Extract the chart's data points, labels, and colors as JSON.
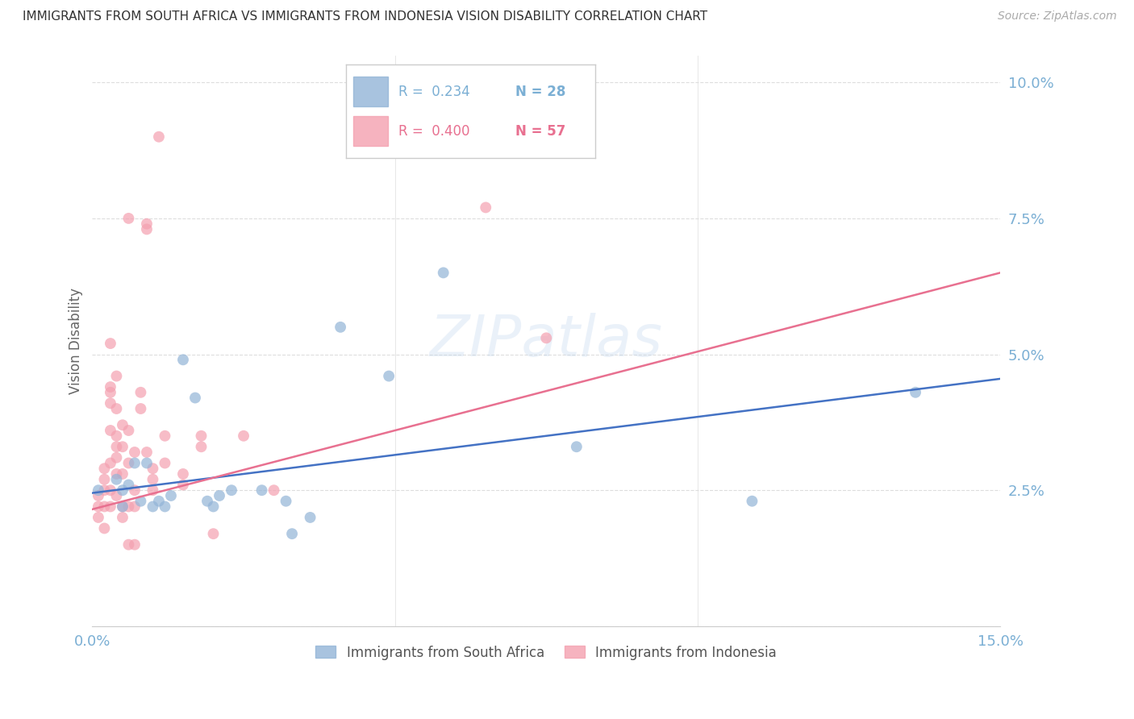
{
  "title": "IMMIGRANTS FROM SOUTH AFRICA VS IMMIGRANTS FROM INDONESIA VISION DISABILITY CORRELATION CHART",
  "source": "Source: ZipAtlas.com",
  "ylabel": "Vision Disability",
  "legend_blue_r": "R =  0.234",
  "legend_blue_n": "N = 28",
  "legend_pink_r": "R =  0.400",
  "legend_pink_n": "N = 57",
  "legend_label_blue": "Immigrants from South Africa",
  "legend_label_pink": "Immigrants from Indonesia",
  "blue_color": "#92B4D7",
  "pink_color": "#F4A0B0",
  "blue_scatter": [
    [
      0.001,
      0.025
    ],
    [
      0.004,
      0.027
    ],
    [
      0.005,
      0.025
    ],
    [
      0.005,
      0.022
    ],
    [
      0.006,
      0.026
    ],
    [
      0.007,
      0.03
    ],
    [
      0.008,
      0.023
    ],
    [
      0.009,
      0.03
    ],
    [
      0.01,
      0.022
    ],
    [
      0.011,
      0.023
    ],
    [
      0.012,
      0.022
    ],
    [
      0.013,
      0.024
    ],
    [
      0.015,
      0.049
    ],
    [
      0.017,
      0.042
    ],
    [
      0.019,
      0.023
    ],
    [
      0.02,
      0.022
    ],
    [
      0.021,
      0.024
    ],
    [
      0.023,
      0.025
    ],
    [
      0.028,
      0.025
    ],
    [
      0.032,
      0.023
    ],
    [
      0.033,
      0.017
    ],
    [
      0.036,
      0.02
    ],
    [
      0.041,
      0.055
    ],
    [
      0.049,
      0.046
    ],
    [
      0.058,
      0.065
    ],
    [
      0.08,
      0.033
    ],
    [
      0.109,
      0.023
    ],
    [
      0.136,
      0.043
    ]
  ],
  "pink_scatter": [
    [
      0.001,
      0.024
    ],
    [
      0.001,
      0.022
    ],
    [
      0.001,
      0.02
    ],
    [
      0.002,
      0.029
    ],
    [
      0.002,
      0.027
    ],
    [
      0.002,
      0.025
    ],
    [
      0.002,
      0.022
    ],
    [
      0.002,
      0.018
    ],
    [
      0.003,
      0.052
    ],
    [
      0.003,
      0.044
    ],
    [
      0.003,
      0.043
    ],
    [
      0.003,
      0.041
    ],
    [
      0.003,
      0.036
    ],
    [
      0.003,
      0.03
    ],
    [
      0.003,
      0.025
    ],
    [
      0.003,
      0.022
    ],
    [
      0.004,
      0.046
    ],
    [
      0.004,
      0.04
    ],
    [
      0.004,
      0.035
    ],
    [
      0.004,
      0.033
    ],
    [
      0.004,
      0.031
    ],
    [
      0.004,
      0.028
    ],
    [
      0.004,
      0.024
    ],
    [
      0.005,
      0.037
    ],
    [
      0.005,
      0.033
    ],
    [
      0.005,
      0.028
    ],
    [
      0.005,
      0.022
    ],
    [
      0.005,
      0.02
    ],
    [
      0.006,
      0.075
    ],
    [
      0.006,
      0.036
    ],
    [
      0.006,
      0.03
    ],
    [
      0.006,
      0.022
    ],
    [
      0.006,
      0.015
    ],
    [
      0.007,
      0.032
    ],
    [
      0.007,
      0.025
    ],
    [
      0.007,
      0.022
    ],
    [
      0.007,
      0.015
    ],
    [
      0.008,
      0.043
    ],
    [
      0.008,
      0.04
    ],
    [
      0.009,
      0.074
    ],
    [
      0.009,
      0.073
    ],
    [
      0.009,
      0.032
    ],
    [
      0.01,
      0.029
    ],
    [
      0.01,
      0.027
    ],
    [
      0.01,
      0.025
    ],
    [
      0.011,
      0.09
    ],
    [
      0.012,
      0.035
    ],
    [
      0.012,
      0.03
    ],
    [
      0.015,
      0.028
    ],
    [
      0.015,
      0.026
    ],
    [
      0.018,
      0.035
    ],
    [
      0.018,
      0.033
    ],
    [
      0.02,
      0.017
    ],
    [
      0.025,
      0.035
    ],
    [
      0.03,
      0.025
    ],
    [
      0.065,
      0.077
    ],
    [
      0.075,
      0.053
    ]
  ],
  "blue_line_x": [
    0.0,
    0.15
  ],
  "blue_line_y": [
    0.0245,
    0.0455
  ],
  "pink_line_x": [
    0.0,
    0.15
  ],
  "pink_line_y": [
    0.0215,
    0.065
  ],
  "xlim": [
    0.0,
    0.15
  ],
  "ylim": [
    0.0,
    0.105
  ],
  "ytick_values": [
    0.0,
    0.025,
    0.05,
    0.075,
    0.1
  ],
  "ytick_labels": [
    "",
    "2.5%",
    "5.0%",
    "7.5%",
    "10.0%"
  ],
  "xtick_values": [
    0.0,
    0.05,
    0.1,
    0.15
  ],
  "xtick_labels": [
    "0.0%",
    "",
    "",
    "15.0%"
  ],
  "background_color": "#FFFFFF",
  "grid_color": "#DDDDDD",
  "axis_label_color": "#7BAFD4",
  "title_color": "#333333",
  "marker_size": 100,
  "line_blue_color": "#4472C4",
  "line_pink_color": "#E87090"
}
